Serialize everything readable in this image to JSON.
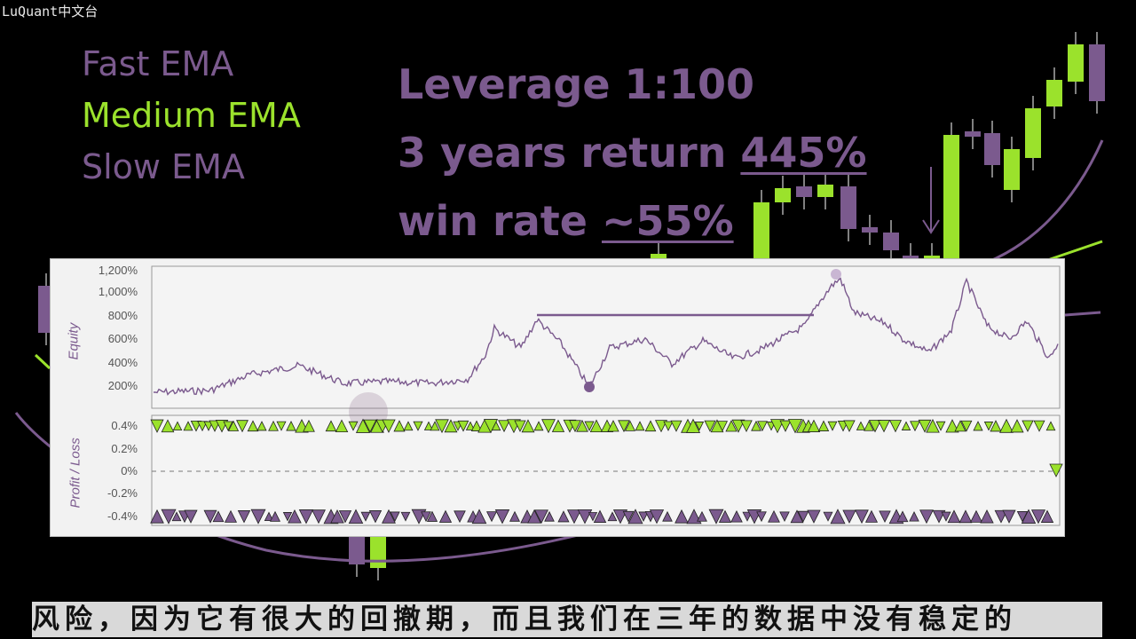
{
  "watermark": "LuQuant中文台",
  "legend": {
    "fast": {
      "label": "Fast EMA",
      "color": "#7b5a8e"
    },
    "medium": {
      "label": "Medium EMA",
      "color": "#9be22c"
    },
    "slow": {
      "label": "Slow EMA",
      "color": "#7b5a8e"
    }
  },
  "stats": {
    "leverage": "Leverage 1:100",
    "return_prefix": "3 years return ",
    "return_value": "445%",
    "winrate_prefix": "win rate ",
    "winrate_value": "~55%"
  },
  "equity_panel": {
    "ylabel": "Equity",
    "ticks": [
      "1,200%",
      "1,000%",
      "800%",
      "600%",
      "400%",
      "200%"
    ]
  },
  "pl_panel": {
    "ylabel": "Profit / Loss",
    "ticks": [
      "0.4%",
      "0.2%",
      "0%",
      "-0.2%",
      "-0.4%"
    ]
  },
  "subtitle": "风险，因为它有很大的回撤期，而且我们在三年的数据中没有稳定的",
  "colors": {
    "purple": "#7b5a8e",
    "green": "#9be22c",
    "panel_bg": "#f2f2f2"
  }
}
